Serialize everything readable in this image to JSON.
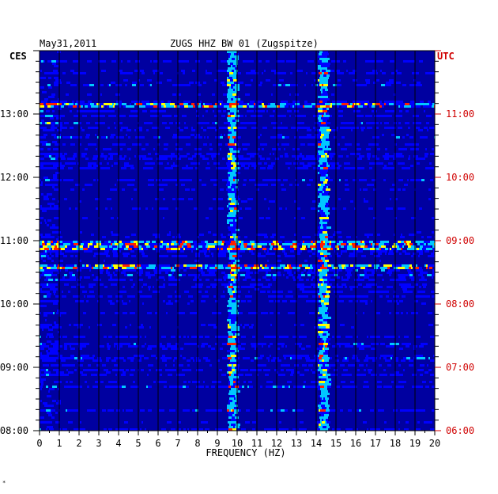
{
  "header": {
    "date": "May31,2011",
    "station": "ZUGS HHZ BW 01 (Zugspitze)"
  },
  "timezones": {
    "left": "CES",
    "right": "UTC"
  },
  "corner_mark": "*",
  "colors": {
    "background": "#0000a0",
    "grid": "#000000",
    "left_labels": "#000000",
    "right_labels": "#d00000",
    "noise_low": "#0000ff",
    "noise_mid": "#00c8ff",
    "noise_high": "#ffff00",
    "noise_peak": "#ff2000"
  },
  "chart_data": {
    "type": "heatmap",
    "title": "ZUGS HHZ BW 01 (Zugspitze)",
    "xlabel": "FREQUENCY (HZ)",
    "x_ticks": [
      "0",
      "1",
      "2",
      "3",
      "4",
      "5",
      "6",
      "7",
      "8",
      "9",
      "10",
      "11",
      "12",
      "13",
      "14",
      "15",
      "16",
      "17",
      "18",
      "19",
      "20"
    ],
    "xlim": [
      0,
      20
    ],
    "y_left_ticks": [
      "08:00",
      "09:00",
      "10:00",
      "11:00",
      "12:00",
      "13:00"
    ],
    "y_right_ticks": [
      "06:00",
      "07:00",
      "08:00",
      "09:00",
      "10:00",
      "11:00"
    ],
    "y_left_label": "CES",
    "y_right_label": "UTC",
    "time_range_ces": [
      "08:00",
      "13:45"
    ],
    "grid": true,
    "persistent_lines_hz": [
      9.7,
      14.3
    ],
    "strong_broadband_rows_ces": [
      "13:11",
      "10:38",
      "10:59",
      "10:56"
    ]
  }
}
